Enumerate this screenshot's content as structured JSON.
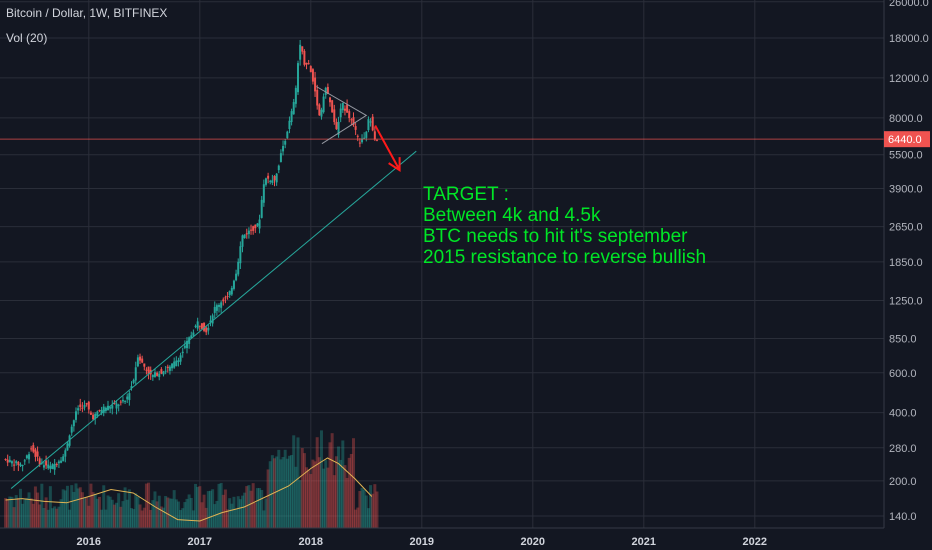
{
  "header": {
    "title": "Bitcoin / Dollar, 1W, BITFINEX",
    "volume_label": "Vol (20)"
  },
  "annotation": {
    "lines": [
      "TARGET :",
      "Between 4k and 4.5k",
      "BTC needs to hit it's september",
      "2015 resistance to reverse bullish"
    ],
    "color": "#00e626"
  },
  "price_marker": {
    "label": "6440.0",
    "value": 6440,
    "color": "#ef5350"
  },
  "colors": {
    "background": "#131722",
    "grid": "#2a2e39",
    "up": "#26a69a",
    "down": "#ef5350",
    "trendline": "#26a69a",
    "volume_ma": "#e0b353",
    "arrow": "#ff1a1a"
  },
  "chart_data": {
    "type": "candlestick",
    "title": "Bitcoin / Dollar, 1W, BITFINEX",
    "scale": "log",
    "ylim": [
      130,
      26000
    ],
    "y_ticks": [
      26000,
      18000,
      12000,
      8000,
      5500,
      3900,
      2650,
      1850,
      1250,
      850,
      600,
      400,
      280,
      200,
      140
    ],
    "y_tick_labels": [
      "26000.0",
      "18000.0",
      "12000.0",
      "8000.0",
      "5500.0",
      "3900.0",
      "2650.0",
      "1850.0",
      "1250.0",
      "850.0",
      "600.0",
      "400.0",
      "280.0",
      "200.0",
      "140.0"
    ],
    "x_ticks": [
      "2016",
      "2017",
      "2018",
      "2019",
      "2020",
      "2021",
      "2022"
    ],
    "xlim": [
      2015.2,
      2022.85
    ],
    "price_path": [
      [
        2015.25,
        250
      ],
      [
        2015.35,
        240
      ],
      [
        2015.42,
        235
      ],
      [
        2015.5,
        280
      ],
      [
        2015.58,
        240
      ],
      [
        2015.68,
        230
      ],
      [
        2015.8,
        260
      ],
      [
        2015.85,
        330
      ],
      [
        2015.92,
        420
      ],
      [
        2016.0,
        430
      ],
      [
        2016.05,
        380
      ],
      [
        2016.15,
        420
      ],
      [
        2016.25,
        430
      ],
      [
        2016.35,
        450
      ],
      [
        2016.42,
        550
      ],
      [
        2016.46,
        720
      ],
      [
        2016.5,
        660
      ],
      [
        2016.58,
        580
      ],
      [
        2016.65,
        600
      ],
      [
        2016.75,
        630
      ],
      [
        2016.85,
        720
      ],
      [
        2016.95,
        900
      ],
      [
        2017.0,
        1000
      ],
      [
        2017.08,
        920
      ],
      [
        2017.15,
        1150
      ],
      [
        2017.22,
        1250
      ],
      [
        2017.28,
        1300
      ],
      [
        2017.35,
        1700
      ],
      [
        2017.4,
        2400
      ],
      [
        2017.45,
        2500
      ],
      [
        2017.5,
        2600
      ],
      [
        2017.55,
        2700
      ],
      [
        2017.6,
        4300
      ],
      [
        2017.7,
        4300
      ],
      [
        2017.75,
        5500
      ],
      [
        2017.82,
        7400
      ],
      [
        2017.88,
        10000
      ],
      [
        2017.92,
        17500
      ],
      [
        2017.96,
        14000
      ],
      [
        2018.0,
        13800
      ],
      [
        2018.05,
        11000
      ],
      [
        2018.1,
        8000
      ],
      [
        2018.15,
        11000
      ],
      [
        2018.2,
        9000
      ],
      [
        2018.25,
        7000
      ],
      [
        2018.3,
        9200
      ],
      [
        2018.35,
        8500
      ],
      [
        2018.4,
        7500
      ],
      [
        2018.45,
        6300
      ],
      [
        2018.5,
        6400
      ],
      [
        2018.55,
        8200
      ],
      [
        2018.6,
        6440
      ]
    ],
    "volume_ma_path": [
      [
        2015.25,
        0.4
      ],
      [
        2015.4,
        0.42
      ],
      [
        2015.6,
        0.38
      ],
      [
        2015.8,
        0.36
      ],
      [
        2016.0,
        0.45
      ],
      [
        2016.2,
        0.55
      ],
      [
        2016.4,
        0.5
      ],
      [
        2016.6,
        0.3
      ],
      [
        2016.8,
        0.12
      ],
      [
        2017.0,
        0.1
      ],
      [
        2017.2,
        0.22
      ],
      [
        2017.4,
        0.3
      ],
      [
        2017.6,
        0.45
      ],
      [
        2017.8,
        0.6
      ],
      [
        2018.0,
        0.85
      ],
      [
        2018.15,
        1.0
      ],
      [
        2018.25,
        0.92
      ],
      [
        2018.4,
        0.7
      ],
      [
        2018.55,
        0.45
      ]
    ],
    "trendline": [
      [
        2015.3,
        185
      ],
      [
        2018.95,
        5700
      ]
    ],
    "triangle": [
      [
        2018.05,
        11000
      ],
      [
        2018.5,
        8200
      ],
      [
        2018.1,
        6150
      ]
    ],
    "forecast_arrow": [
      [
        2018.58,
        7400
      ],
      [
        2018.8,
        4700
      ]
    ]
  }
}
